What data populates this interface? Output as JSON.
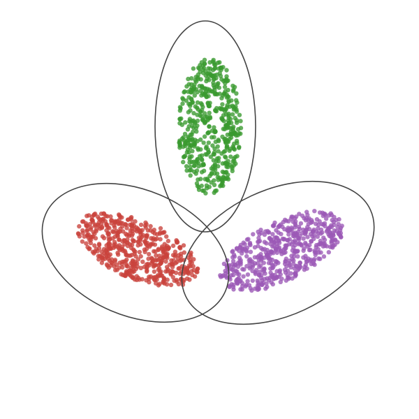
{
  "diagram": {
    "clusters": [
      {
        "color": "#3a9a2f",
        "point_count": 520
      },
      {
        "color": "#c9433c",
        "point_count": 540
      },
      {
        "color": "#9b59b6",
        "point_count": 540
      }
    ],
    "outline_color": "#444444"
  }
}
